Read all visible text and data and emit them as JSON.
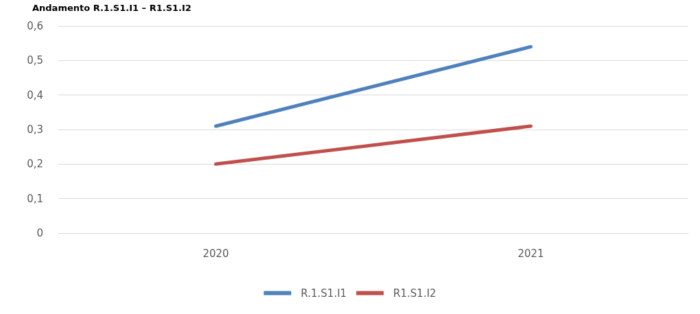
{
  "chart_data": {
    "type": "line",
    "title": "Andamento R.1.S1.I1 – R1.S1.I2",
    "categories": [
      "2020",
      "2021"
    ],
    "series": [
      {
        "name": "R.1.S1.I1",
        "color": "#4f81bd",
        "values": [
          0.31,
          0.54
        ]
      },
      {
        "name": "R1.S1.I2",
        "color": "#c0504d",
        "values": [
          0.2,
          0.31
        ]
      }
    ],
    "ylim": [
      0,
      0.6
    ],
    "yticks": [
      {
        "value": 0,
        "label": "0"
      },
      {
        "value": 0.1,
        "label": "0,1"
      },
      {
        "value": 0.2,
        "label": "0,2"
      },
      {
        "value": 0.3,
        "label": "0,3"
      },
      {
        "value": 0.4,
        "label": "0,4"
      },
      {
        "value": 0.5,
        "label": "0,5"
      },
      {
        "value": 0.6,
        "label": "0,6"
      }
    ],
    "grid": "y",
    "legend": "bottom",
    "marker": "none",
    "line_style": "solid"
  }
}
